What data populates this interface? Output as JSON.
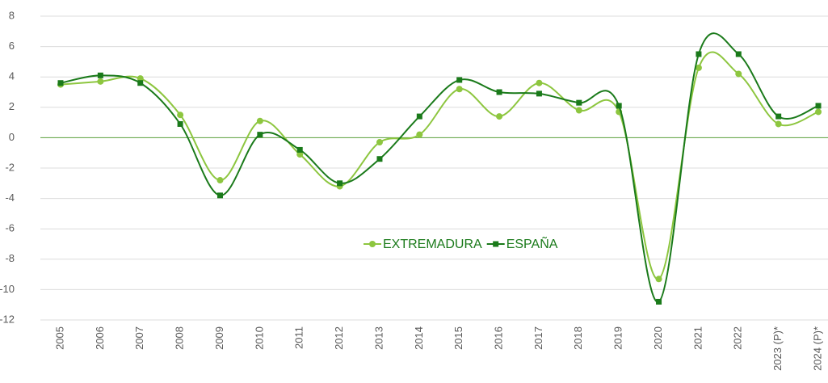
{
  "chart_data": {
    "type": "line",
    "categories": [
      "2005",
      "2006",
      "2007",
      "2008",
      "2009",
      "2010",
      "2011",
      "2012",
      "2013",
      "2014",
      "2015",
      "2016",
      "2017",
      "2018",
      "2019",
      "2020",
      "2021",
      "2022",
      "2023 (P)*",
      "2024 (P)*"
    ],
    "series": [
      {
        "name": "EXTREMADURA",
        "color": "#8dc63f",
        "marker": "circle",
        "values": [
          3.5,
          3.7,
          3.9,
          1.5,
          -2.8,
          1.1,
          -1.1,
          -3.2,
          -0.3,
          0.2,
          3.2,
          1.4,
          3.6,
          1.8,
          1.7,
          -9.3,
          4.6,
          4.2,
          0.9,
          1.7
        ]
      },
      {
        "name": "ESPAÑA",
        "color": "#1a7a1a",
        "marker": "square",
        "values": [
          3.6,
          4.1,
          3.6,
          0.9,
          -3.8,
          0.2,
          -0.8,
          -3.0,
          -1.4,
          1.4,
          3.8,
          3.0,
          2.9,
          2.3,
          2.1,
          -10.8,
          5.5,
          5.5,
          1.4,
          2.1
        ]
      }
    ],
    "ylim": [
      -12,
      8
    ],
    "yticks": [
      -12,
      -10,
      -8,
      -6,
      -4,
      -2,
      0,
      2,
      4,
      6,
      8
    ],
    "grid": true
  }
}
